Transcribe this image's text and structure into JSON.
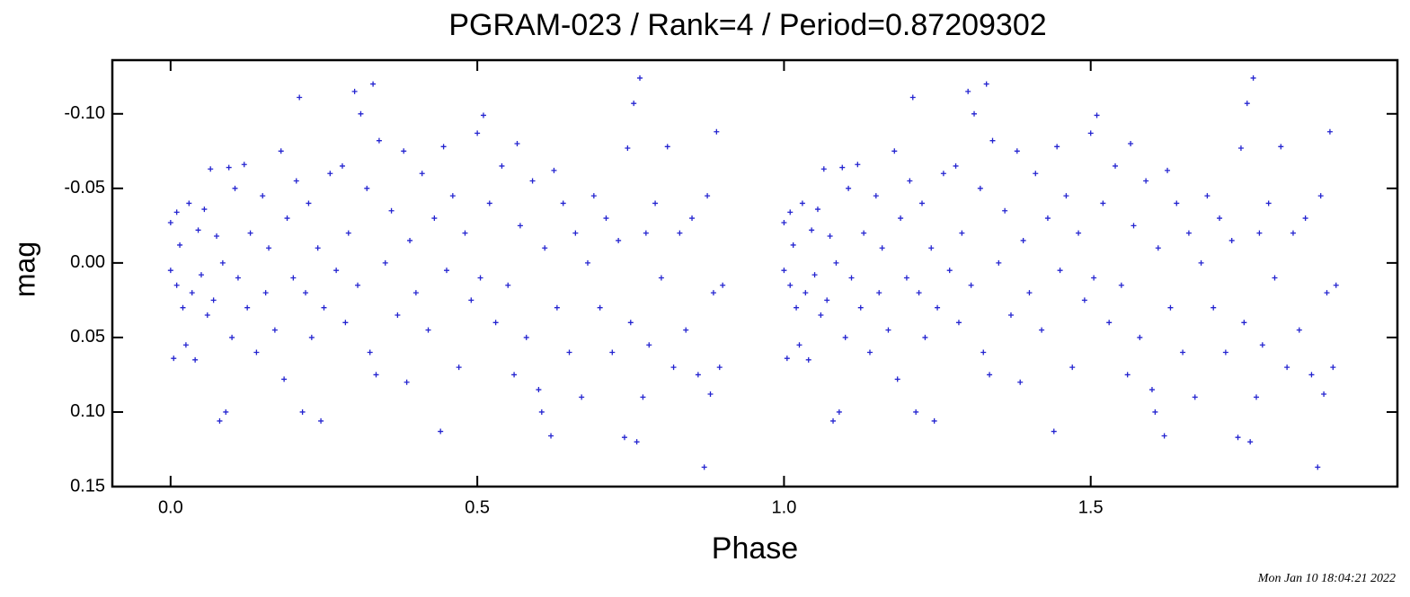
{
  "chart_data": {
    "type": "scatter",
    "title": "PGRAM-023 / Rank=4 / Period=0.87209302",
    "xlabel": "Phase",
    "ylabel": "mag",
    "footer": "Mon Jan 10 18:04:21 2022",
    "color": "#2424d0",
    "xlim": [
      -0.095,
      2.0
    ],
    "ylim": [
      -0.136,
      0.15
    ],
    "y_inverted": true,
    "xticks": [
      {
        "value": 0,
        "label": "0.0"
      },
      0.5,
      {
        "value": 1,
        "label": "1.0"
      },
      1.5
    ],
    "yticks": [
      {
        "value": -0.1,
        "label": "-0.10"
      },
      {
        "value": -0.05,
        "label": "-0.05"
      },
      {
        "value": 0,
        "label": "0.00"
      },
      0.05,
      {
        "value": 0.1,
        "label": "0.10"
      },
      0.15
    ],
    "x": [
      0,
      0,
      0.005,
      0.01,
      0.01,
      0.015,
      0.02,
      0.025,
      0.03,
      0.035,
      0.04,
      0.045,
      0.05,
      0.055,
      0.06,
      0.065,
      0.07,
      0.075,
      0.08,
      0.085,
      0.09,
      0.095,
      0.1,
      0.105,
      0.11,
      0.12,
      0.125,
      0.13,
      0.14,
      0.15,
      0.155,
      0.16,
      0.17,
      0.18,
      0.185,
      0.19,
      0.2,
      0.205,
      0.21,
      0.215,
      0.22,
      0.225,
      0.23,
      0.24,
      0.245,
      0.25,
      0.26,
      0.27,
      0.28,
      0.285,
      0.29,
      0.3,
      0.305,
      0.31,
      0.32,
      0.325,
      0.33,
      0.335,
      0.34,
      0.35,
      0.36,
      0.37,
      0.38,
      0.385,
      0.39,
      0.4,
      0.41,
      0.42,
      0.43,
      0.44,
      0.445,
      0.45,
      0.46,
      0.47,
      0.48,
      0.49,
      0.5,
      0.505,
      0.51,
      0.52,
      0.53,
      0.54,
      0.55,
      0.56,
      0.565,
      0.57,
      0.58,
      0.59,
      0.6,
      0.605,
      0.61,
      0.62,
      0.625,
      0.63,
      0.64,
      0.65,
      0.66,
      0.67,
      0.68,
      0.69,
      0.7,
      0.71,
      0.72,
      0.73,
      0.74,
      0.745,
      0.75,
      0.755,
      0.76,
      0.765,
      0.77,
      0.775,
      0.78,
      0.79,
      0.8,
      0.81,
      0.82,
      0.83,
      0.84,
      0.85,
      0.86,
      0.87,
      0.875,
      0.88,
      0.885,
      0.89,
      0.895,
      0.9,
      1,
      1,
      1.005,
      1.01,
      1.01,
      1.015,
      1.02,
      1.025,
      1.03,
      1.035,
      1.04,
      1.045,
      1.05,
      1.055,
      1.06,
      1.065,
      1.07,
      1.075,
      1.08,
      1.085,
      1.09,
      1.095,
      1.1,
      1.105,
      1.11,
      1.12,
      1.125,
      1.13,
      1.14,
      1.15,
      1.155,
      1.16,
      1.17,
      1.18,
      1.185,
      1.19,
      1.2,
      1.205,
      1.21,
      1.215,
      1.22,
      1.225,
      1.23,
      1.24,
      1.245,
      1.25,
      1.26,
      1.27,
      1.28,
      1.285,
      1.29,
      1.3,
      1.305,
      1.31,
      1.32,
      1.325,
      1.33,
      1.335,
      1.34,
      1.35,
      1.36,
      1.37,
      1.38,
      1.385,
      1.39,
      1.4,
      1.41,
      1.42,
      1.43,
      1.44,
      1.445,
      1.45,
      1.46,
      1.47,
      1.48,
      1.49,
      1.5,
      1.505,
      1.51,
      1.52,
      1.53,
      1.54,
      1.55,
      1.56,
      1.565,
      1.57,
      1.58,
      1.59,
      1.6,
      1.605,
      1.61,
      1.62,
      1.625,
      1.63,
      1.64,
      1.65,
      1.66,
      1.67,
      1.68,
      1.69,
      1.7,
      1.71,
      1.72,
      1.73,
      1.74,
      1.745,
      1.75,
      1.755,
      1.76,
      1.765,
      1.77,
      1.775,
      1.78,
      1.79,
      1.8,
      1.81,
      1.82,
      1.83,
      1.84,
      1.85,
      1.86,
      1.87,
      1.875,
      1.88,
      1.885,
      1.89,
      1.895,
      1.9
    ],
    "values": [
      -0.027,
      0.005,
      0.064,
      -0.034,
      0.015,
      -0.012,
      0.03,
      0.055,
      -0.04,
      0.02,
      0.065,
      -0.022,
      0.008,
      -0.036,
      0.035,
      -0.063,
      0.025,
      -0.018,
      0.106,
      0,
      0.1,
      -0.064,
      0.05,
      -0.05,
      0.01,
      -0.066,
      0.03,
      -0.02,
      0.06,
      -0.045,
      0.02,
      -0.01,
      0.045,
      -0.075,
      0.078,
      -0.03,
      0.01,
      -0.055,
      -0.111,
      0.1,
      0.02,
      -0.04,
      0.05,
      -0.01,
      0.106,
      0.03,
      -0.06,
      0.005,
      -0.065,
      0.04,
      -0.02,
      -0.115,
      0.015,
      -0.1,
      -0.05,
      0.06,
      -0.12,
      0.075,
      -0.082,
      0,
      -0.035,
      0.035,
      -0.075,
      0.08,
      -0.015,
      0.02,
      -0.06,
      0.045,
      -0.03,
      0.113,
      -0.078,
      0.005,
      -0.045,
      0.07,
      -0.02,
      0.025,
      -0.087,
      0.01,
      -0.099,
      -0.04,
      0.04,
      -0.065,
      0.015,
      0.075,
      -0.08,
      -0.025,
      0.05,
      -0.055,
      0.085,
      0.1,
      -0.01,
      0.116,
      -0.062,
      0.03,
      -0.04,
      0.06,
      -0.02,
      0.09,
      0,
      -0.045,
      0.03,
      -0.03,
      0.06,
      -0.015,
      0.117,
      -0.077,
      0.04,
      -0.107,
      0.12,
      -0.124,
      0.09,
      -0.02,
      0.055,
      -0.04,
      0.01,
      -0.078,
      0.07,
      -0.02,
      0.045,
      -0.03,
      0.075,
      0.137,
      -0.045,
      0.088,
      0.02,
      -0.088,
      0.07,
      0.015,
      -0.027,
      0.005,
      0.064,
      -0.034,
      0.015,
      -0.012,
      0.03,
      0.055,
      -0.04,
      0.02,
      0.065,
      -0.022,
      0.008,
      -0.036,
      0.035,
      -0.063,
      0.025,
      -0.018,
      0.106,
      0,
      0.1,
      -0.064,
      0.05,
      -0.05,
      0.01,
      -0.066,
      0.03,
      -0.02,
      0.06,
      -0.045,
      0.02,
      -0.01,
      0.045,
      -0.075,
      0.078,
      -0.03,
      0.01,
      -0.055,
      -0.111,
      0.1,
      0.02,
      -0.04,
      0.05,
      -0.01,
      0.106,
      0.03,
      -0.06,
      0.005,
      -0.065,
      0.04,
      -0.02,
      -0.115,
      0.015,
      -0.1,
      -0.05,
      0.06,
      -0.12,
      0.075,
      -0.082,
      0,
      -0.035,
      0.035,
      -0.075,
      0.08,
      -0.015,
      0.02,
      -0.06,
      0.045,
      -0.03,
      0.113,
      -0.078,
      0.005,
      -0.045,
      0.07,
      -0.02,
      0.025,
      -0.087,
      0.01,
      -0.099,
      -0.04,
      0.04,
      -0.065,
      0.015,
      0.075,
      -0.08,
      -0.025,
      0.05,
      -0.055,
      0.085,
      0.1,
      -0.01,
      0.116,
      -0.062,
      0.03,
      -0.04,
      0.06,
      -0.02,
      0.09,
      0,
      -0.045,
      0.03,
      -0.03,
      0.06,
      -0.015,
      0.117,
      -0.077,
      0.04,
      -0.107,
      0.12,
      -0.124,
      0.09,
      -0.02,
      0.055,
      -0.04,
      0.01,
      -0.078,
      0.07,
      -0.02,
      0.045,
      -0.03,
      0.075,
      0.137,
      -0.045,
      0.088,
      0.02,
      -0.088,
      0.07,
      0.015
    ]
  }
}
